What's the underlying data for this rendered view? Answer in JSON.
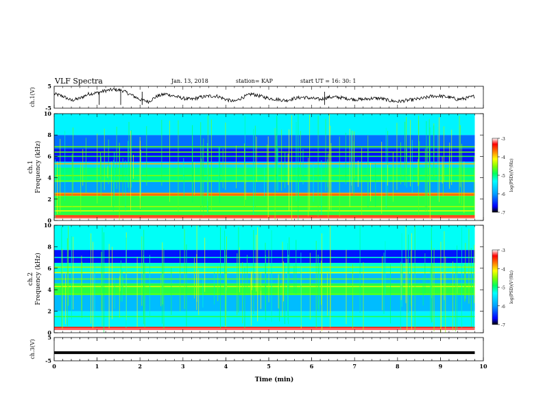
{
  "header": {
    "title": "VLF Spectra",
    "date": "Jan. 13, 2018",
    "station": "station= KAP",
    "start": "start UT = 16: 30: 1"
  },
  "chart_data": [
    {
      "type": "line",
      "panel": "ch.1 waveform",
      "ylabel": "ch.1(V)",
      "ylim": [
        -5,
        5
      ],
      "yticks": [
        "5",
        "-5"
      ],
      "xlim": [
        0,
        10
      ],
      "x_extent": [
        0,
        9.8
      ],
      "series": [
        {
          "x": [
            0,
            0.2,
            0.4,
            0.6,
            0.8,
            1.0,
            1.2,
            1.4,
            1.6,
            1.8,
            2.0,
            2.2,
            2.4,
            2.6,
            2.8,
            3.0,
            3.2,
            3.4,
            3.6,
            3.8,
            4.0,
            4.2,
            4.4,
            4.6,
            4.8,
            5.0,
            5.2,
            5.4,
            5.6,
            5.8,
            6.0,
            6.2,
            6.4,
            6.6,
            6.8,
            7.0,
            7.2,
            7.4,
            7.6,
            7.8,
            8.0,
            8.2,
            8.4,
            8.6,
            8.8,
            9.0,
            9.2,
            9.4,
            9.6,
            9.8
          ],
          "values": [
            1.5,
            0.5,
            -1.5,
            -0.5,
            1.5,
            2.0,
            3.0,
            3.5,
            3.0,
            1.0,
            -1.0,
            -2.0,
            0.5,
            1.5,
            0.5,
            -0.5,
            -1.0,
            0.0,
            0.5,
            0.5,
            -1.0,
            -2.0,
            0.0,
            1.5,
            0.5,
            -0.5,
            -1.0,
            -1.5,
            -0.5,
            0.0,
            -0.5,
            -1.0,
            0.0,
            0.0,
            -0.5,
            -1.0,
            -1.0,
            -0.5,
            -0.5,
            -1.5,
            -2.0,
            -1.5,
            -1.0,
            -0.5,
            0.5,
            0.5,
            0.0,
            -1.0,
            -0.5,
            0.5
          ]
        }
      ]
    },
    {
      "type": "heatmap",
      "panel": "ch.1 spectrogram",
      "ylabel": "ch.1 Frequency (kHz)",
      "ylim": [
        0,
        10
      ],
      "yticks": [
        "0",
        "2",
        "4",
        "6",
        "8",
        "10"
      ],
      "xlim": [
        0,
        10
      ],
      "x_extent": [
        0,
        9.8
      ],
      "colorbar": {
        "label": "log(PSD)(V²/Hz)",
        "range": [
          -7,
          -3
        ],
        "ticks": [
          "-3",
          "-4",
          "-5",
          "-6",
          "-7"
        ]
      },
      "bands": [
        {
          "f": [
            0.2,
            0.5
          ],
          "level": -3.5
        },
        {
          "f": [
            0.5,
            2.3
          ],
          "level": -4.8
        },
        {
          "f": [
            2.3,
            2.6
          ],
          "level": -3.8
        },
        {
          "f": [
            2.6,
            3.6
          ],
          "level": -6.0
        },
        {
          "f": [
            3.6,
            4.9
          ],
          "level": -5.0
        },
        {
          "f": [
            4.9,
            5.5
          ],
          "level": -5.6
        },
        {
          "f": [
            5.5,
            6.7
          ],
          "level": -6.6
        },
        {
          "f": [
            6.7,
            8.0
          ],
          "level": -6.2
        },
        {
          "f": [
            8.0,
            10.0
          ],
          "level": -5.4
        }
      ]
    },
    {
      "type": "heatmap",
      "panel": "ch.2 spectrogram",
      "ylabel": "ch.2 Frequency (kHz)",
      "ylim": [
        0,
        10
      ],
      "yticks": [
        "0",
        "2",
        "4",
        "6",
        "8",
        "10"
      ],
      "xlim": [
        0,
        10
      ],
      "x_extent": [
        0,
        9.8
      ],
      "colorbar": {
        "label": "log(PSD)(V²/Hz)",
        "range": [
          -7,
          -3
        ],
        "ticks": [
          "-3",
          "-4",
          "-5",
          "-6",
          "-7"
        ]
      },
      "bands": [
        {
          "f": [
            0.2,
            0.5
          ],
          "level": -3.2
        },
        {
          "f": [
            0.5,
            2.0
          ],
          "level": -5.4
        },
        {
          "f": [
            2.0,
            3.5
          ],
          "level": -5.8
        },
        {
          "f": [
            3.5,
            4.6
          ],
          "level": -4.8
        },
        {
          "f": [
            4.6,
            5.5
          ],
          "level": -5.8
        },
        {
          "f": [
            5.5,
            6.5
          ],
          "level": -5.2
        },
        {
          "f": [
            6.5,
            7.7
          ],
          "level": -6.6
        },
        {
          "f": [
            7.7,
            10.0
          ],
          "level": -5.3
        }
      ]
    },
    {
      "type": "line",
      "panel": "ch.3 waveform",
      "ylabel": "ch.3(V)",
      "ylim": [
        -5,
        5
      ],
      "yticks": [
        "5",
        "-5"
      ],
      "xlim": [
        0,
        10
      ],
      "x_extent": [
        0,
        9.8
      ],
      "series": [
        {
          "x": [
            0,
            9.8
          ],
          "values": [
            -1.5,
            -1.5
          ]
        }
      ]
    }
  ],
  "xaxis": {
    "label": "Time (min)",
    "ticks": [
      "0",
      "1",
      "2",
      "3",
      "4",
      "5",
      "6",
      "7",
      "8",
      "9",
      "10"
    ]
  }
}
